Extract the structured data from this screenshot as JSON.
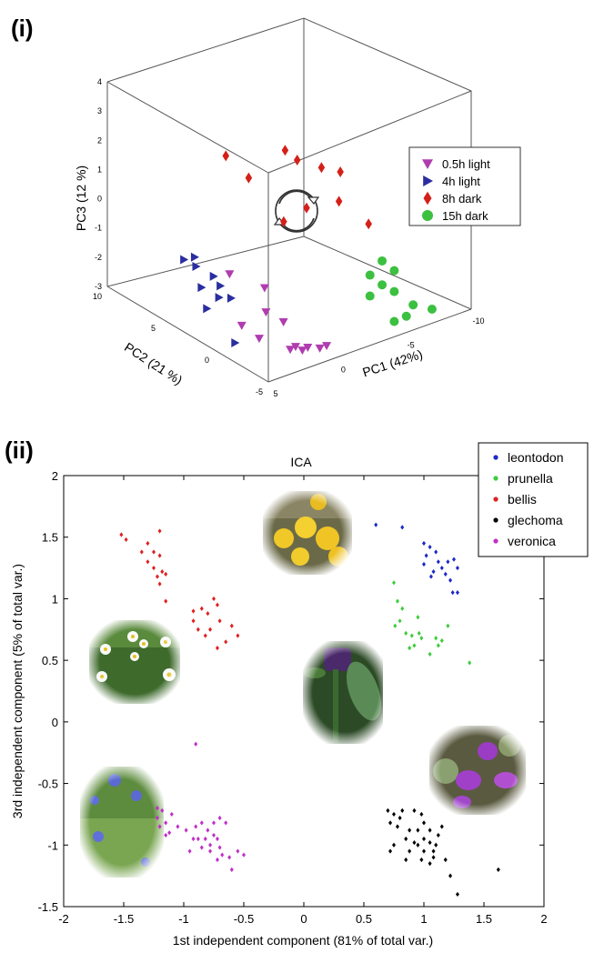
{
  "panel_labels": [
    "(i)",
    "(ii)"
  ],
  "colors": {
    "0.5h light": "#b03cb0",
    "4h light": "#2a2ea0",
    "8h dark": "#d42018",
    "15h dark": "#3cc040",
    "leontodon": "#1c28c8",
    "prunella": "#3ccc3c",
    "bellis": "#e02020",
    "glechoma": "#000000",
    "veronica": "#c030c8"
  },
  "chart_data": [
    {
      "type": "scatter",
      "subtype": "3d-scatter",
      "title": "",
      "xlabel": "PC1 (42%)",
      "ylabel": "PC2 (21 %)",
      "zlabel": "PC3 (12 %)",
      "xlim": [
        -10,
        5
      ],
      "ylim": [
        -5,
        10
      ],
      "zlim": [
        -3,
        4
      ],
      "x_ticks": [
        "-10",
        "-5",
        "0",
        "5"
      ],
      "y_ticks": [
        "10",
        "5",
        "0",
        "-5"
      ],
      "z_ticks": [
        "4",
        "3",
        "2",
        "1",
        "0",
        "-1",
        "-2",
        "-3"
      ],
      "legend_position": "right",
      "series": [
        {
          "name": "0.5h light",
          "marker": "triangle-down",
          "points": [
            [
              2.5,
              -1.5,
              -1.0
            ],
            [
              3.5,
              0.5,
              -0.8
            ],
            [
              2.0,
              -1.0,
              -2.0
            ],
            [
              3.0,
              0.0,
              -2.5
            ],
            [
              1.5,
              -2.0,
              -2.2
            ],
            [
              2.5,
              -1.0,
              -2.8
            ],
            [
              1.0,
              -2.5,
              -3.0
            ],
            [
              0.5,
              -3.0,
              -3.0
            ],
            [
              0.0,
              -3.5,
              -3.0
            ],
            [
              -0.5,
              -3.5,
              -3.0
            ],
            [
              0.5,
              -2.5,
              -3.2
            ],
            [
              1.0,
              -2.0,
              -3.2
            ]
          ]
        },
        {
          "name": "4h light",
          "marker": "triangle-right",
          "points": [
            [
              4.5,
              3.5,
              -0.8
            ],
            [
              4.5,
              2.5,
              -0.5
            ],
            [
              4.0,
              3.0,
              -1.0
            ],
            [
              3.5,
              2.0,
              -1.2
            ],
            [
              4.0,
              2.5,
              -1.6
            ],
            [
              3.0,
              2.0,
              -1.6
            ],
            [
              3.5,
              1.5,
              -1.8
            ],
            [
              3.0,
              1.0,
              -1.8
            ],
            [
              4.0,
              2.0,
              -2.2
            ],
            [
              3.5,
              0.0,
              -3.0
            ]
          ]
        },
        {
          "name": "8h dark",
          "marker": "diamond",
          "points": [
            [
              1.0,
              4.0,
              2.0
            ],
            [
              -1.0,
              1.0,
              2.5
            ],
            [
              -1.5,
              0.5,
              2.2
            ],
            [
              -2.5,
              -0.5,
              2.0
            ],
            [
              -3.5,
              -1.0,
              1.8
            ],
            [
              0.5,
              2.5,
              1.5
            ],
            [
              -3.0,
              -1.5,
              1.0
            ],
            [
              -1.0,
              -1.0,
              1.0
            ],
            [
              -0.5,
              0.5,
              0.3
            ],
            [
              -4.0,
              -3.0,
              0.4
            ]
          ]
        },
        {
          "name": "15h dark",
          "marker": "circle",
          "points": [
            [
              -5.0,
              -3.0,
              -1.0
            ],
            [
              -5.5,
              -3.5,
              -1.3
            ],
            [
              -5.0,
              -3.0,
              -1.8
            ],
            [
              -4.5,
              -2.5,
              -1.5
            ],
            [
              -5.5,
              -3.5,
              -2.0
            ],
            [
              -6.5,
              -4.0,
              -2.5
            ],
            [
              -7.5,
              -4.5,
              -2.7
            ],
            [
              -6.0,
              -4.0,
              -2.8
            ],
            [
              -5.5,
              -3.5,
              -3.0
            ],
            [
              -4.5,
              -2.5,
              -2.2
            ]
          ]
        }
      ]
    },
    {
      "type": "scatter",
      "title": "ICA",
      "xlabel": "1st independent component (81% of total var.)",
      "ylabel": "3rd independent component (5% of total var.)",
      "xlim": [
        -2,
        2
      ],
      "ylim": [
        -1.5,
        2
      ],
      "x_ticks": [
        "-2",
        "-1.5",
        "-1",
        "-0.5",
        "0",
        "0.5",
        "1",
        "1.5",
        "2"
      ],
      "y_ticks": [
        "-1.5",
        "-1",
        "-0.5",
        "0",
        "0.5",
        "1",
        "1.5",
        "2"
      ],
      "legend_position": "top-right",
      "grid": false,
      "series": [
        {
          "name": "leontodon",
          "points": [
            [
              0.6,
              1.6
            ],
            [
              0.82,
              1.58
            ],
            [
              1.0,
              1.45
            ],
            [
              1.05,
              1.42
            ],
            [
              1.02,
              1.35
            ],
            [
              1.1,
              1.38
            ],
            [
              1.15,
              1.25
            ],
            [
              1.0,
              1.28
            ],
            [
              1.08,
              1.22
            ],
            [
              1.2,
              1.3
            ],
            [
              1.25,
              1.32
            ],
            [
              1.18,
              1.2
            ],
            [
              1.28,
              1.25
            ],
            [
              1.22,
              1.15
            ],
            [
              1.24,
              1.05
            ],
            [
              1.28,
              1.05
            ],
            [
              1.12,
              1.3
            ],
            [
              1.06,
              1.18
            ]
          ]
        },
        {
          "name": "prunella",
          "points": [
            [
              0.75,
              1.13
            ],
            [
              0.78,
              0.98
            ],
            [
              0.82,
              0.92
            ],
            [
              0.8,
              0.82
            ],
            [
              0.85,
              0.72
            ],
            [
              0.9,
              0.7
            ],
            [
              0.92,
              0.62
            ],
            [
              0.96,
              0.72
            ],
            [
              0.98,
              0.68
            ],
            [
              1.05,
              0.55
            ],
            [
              1.1,
              0.68
            ],
            [
              1.12,
              0.62
            ],
            [
              1.2,
              0.78
            ],
            [
              0.76,
              0.78
            ],
            [
              1.38,
              0.48
            ],
            [
              0.95,
              0.85
            ],
            [
              0.88,
              0.6
            ],
            [
              1.15,
              0.66
            ]
          ]
        },
        {
          "name": "bellis",
          "points": [
            [
              -1.52,
              1.52
            ],
            [
              -1.48,
              1.48
            ],
            [
              -1.3,
              1.45
            ],
            [
              -1.25,
              1.38
            ],
            [
              -1.2,
              1.35
            ],
            [
              -1.2,
              1.55
            ],
            [
              -1.25,
              1.25
            ],
            [
              -1.18,
              1.22
            ],
            [
              -1.22,
              1.18
            ],
            [
              -1.15,
              1.2
            ],
            [
              -1.2,
              1.12
            ],
            [
              -1.35,
              1.38
            ],
            [
              -1.3,
              1.3
            ],
            [
              -1.15,
              0.98
            ],
            [
              -0.75,
              1.0
            ],
            [
              -0.72,
              0.95
            ],
            [
              -0.85,
              0.92
            ],
            [
              -0.92,
              0.9
            ],
            [
              -0.8,
              0.88
            ],
            [
              -0.7,
              0.82
            ],
            [
              -0.78,
              0.75
            ],
            [
              -0.88,
              0.75
            ],
            [
              -0.82,
              0.7
            ],
            [
              -0.6,
              0.78
            ],
            [
              -0.55,
              0.7
            ],
            [
              -0.72,
              0.6
            ],
            [
              -0.65,
              0.65
            ],
            [
              -0.92,
              0.82
            ]
          ]
        },
        {
          "name": "glechoma",
          "points": [
            [
              0.7,
              -0.72
            ],
            [
              0.75,
              -0.75
            ],
            [
              0.8,
              -0.78
            ],
            [
              0.82,
              -0.72
            ],
            [
              0.72,
              -0.82
            ],
            [
              0.78,
              -0.85
            ],
            [
              0.88,
              -0.88
            ],
            [
              0.92,
              -0.72
            ],
            [
              0.98,
              -0.75
            ],
            [
              0.95,
              -0.88
            ],
            [
              0.85,
              -0.95
            ],
            [
              0.92,
              -0.98
            ],
            [
              1.0,
              -0.95
            ],
            [
              0.95,
              -1.0
            ],
            [
              1.05,
              -0.98
            ],
            [
              1.08,
              -1.05
            ],
            [
              1.0,
              -1.05
            ],
            [
              1.12,
              -0.92
            ],
            [
              1.1,
              -1.0
            ],
            [
              0.88,
              -1.05
            ],
            [
              0.75,
              -1.0
            ],
            [
              0.72,
              -1.05
            ],
            [
              1.05,
              -0.88
            ],
            [
              0.85,
              -1.12
            ],
            [
              0.98,
              -1.12
            ],
            [
              1.08,
              -1.1
            ],
            [
              1.05,
              -1.15
            ],
            [
              1.15,
              -0.85
            ],
            [
              1.0,
              -0.82
            ],
            [
              1.18,
              -1.12
            ],
            [
              1.22,
              -1.25
            ],
            [
              1.62,
              -1.2
            ],
            [
              1.28,
              -1.4
            ]
          ]
        },
        {
          "name": "veronica",
          "points": [
            [
              -0.9,
              -0.18
            ],
            [
              -1.22,
              -0.7
            ],
            [
              -1.18,
              -0.72
            ],
            [
              -1.22,
              -0.78
            ],
            [
              -1.2,
              -0.85
            ],
            [
              -1.1,
              -0.75
            ],
            [
              -1.15,
              -0.82
            ],
            [
              -1.12,
              -0.9
            ],
            [
              -1.05,
              -0.85
            ],
            [
              -1.15,
              -0.92
            ],
            [
              -0.98,
              -0.88
            ],
            [
              -0.9,
              -0.85
            ],
            [
              -0.92,
              -0.95
            ],
            [
              -0.88,
              -0.95
            ],
            [
              -0.85,
              -0.82
            ],
            [
              -0.8,
              -0.88
            ],
            [
              -0.82,
              -0.95
            ],
            [
              -0.75,
              -0.92
            ],
            [
              -0.78,
              -1.0
            ],
            [
              -0.72,
              -0.95
            ],
            [
              -0.7,
              -1.02
            ],
            [
              -0.68,
              -1.08
            ],
            [
              -0.62,
              -1.1
            ],
            [
              -0.78,
              -1.05
            ],
            [
              -0.85,
              -1.02
            ],
            [
              -0.95,
              -1.05
            ],
            [
              -0.72,
              -1.12
            ],
            [
              -0.6,
              -1.2
            ],
            [
              -0.55,
              -1.05
            ],
            [
              -0.5,
              -1.08
            ],
            [
              -0.75,
              -0.82
            ],
            [
              -0.7,
              -0.78
            ],
            [
              -0.65,
              -0.82
            ]
          ]
        }
      ],
      "image_insets": [
        {
          "name": "leontodon-photo",
          "label": "yellow dandelion-like flowers"
        },
        {
          "name": "bellis-photo",
          "label": "white daisies in grass"
        },
        {
          "name": "prunella-photo",
          "label": "purple spike flower with leaves"
        },
        {
          "name": "veronica-photo",
          "label": "small blue flowers with leaves"
        },
        {
          "name": "glechoma-photo",
          "label": "violet flowers with round leaves"
        }
      ]
    }
  ]
}
